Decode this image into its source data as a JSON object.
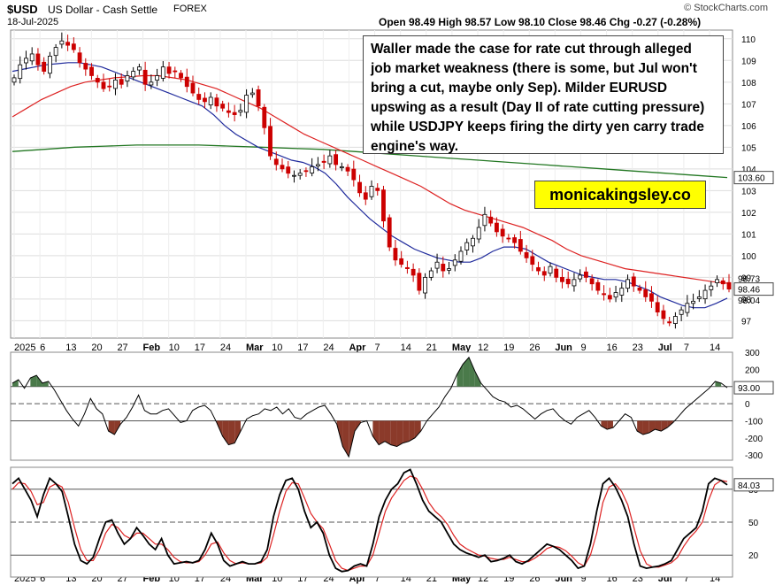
{
  "header": {
    "symbol": "$USD",
    "name": "US Dollar - Cash Settle",
    "exchange": "FOREX",
    "date": "18-Jul-2025",
    "ohlc": "Open 98.49  High 98.57  Low 98.10  Close 98.46  Chg -0.27 (-0.28%)",
    "credit": "© StockCharts.com"
  },
  "annotation": "Waller made the case for rate cut through alleged job market weakness (there is some, but Jul won't bring a cut, maybe only Sep). Milder EURUSD upswing as a result (Day II of rate cutting pressure) while USDJPY keeps firing the dirty yen carry trade engine's way.",
  "brand": "monicakingsley.co",
  "colors": {
    "up": "#ffffff",
    "down": "#cc0000",
    "ma_short": "#1f2a9c",
    "ma_mid": "#dd2222",
    "ma_long": "#227722",
    "stoch_k": "#000000",
    "stoch_d": "#dd2222",
    "cci_pos": "#4a7a4a",
    "cci_neg": "#8b3a2a"
  },
  "chart_data": [
    {
      "type": "candlestick",
      "x_labels": [
        "2025",
        "6",
        "13",
        "20",
        "27",
        "Feb",
        "10",
        "17",
        "24",
        "Mar",
        "10",
        "17",
        "24",
        "Apr",
        "7",
        "14",
        "21",
        "May",
        "12",
        "19",
        "26",
        "Jun",
        "9",
        "16",
        "23",
        "Jul",
        "7",
        "14"
      ],
      "y_ticks": [
        97,
        98,
        99,
        100,
        101,
        102,
        103,
        104,
        105,
        106,
        107,
        108,
        109,
        110
      ],
      "ylim": [
        96.2,
        110.4
      ],
      "last_values": {
        "close": "98.46",
        "ma_mid": "98.73",
        "ma_short": "98.04",
        "ma_long": "103.60"
      },
      "closes": [
        108.2,
        108.8,
        109.1,
        109.3,
        108.8,
        108.5,
        109.2,
        109.6,
        109.9,
        109.7,
        109.5,
        108.9,
        108.6,
        108.3,
        108.0,
        107.7,
        107.8,
        108.1,
        107.9,
        108.3,
        108.5,
        108.7,
        107.9,
        108.0,
        108.3,
        108.7,
        108.4,
        108.5,
        108.2,
        107.8,
        107.5,
        107.2,
        107.1,
        107.3,
        106.9,
        106.8,
        106.6,
        106.5,
        106.7,
        107.4,
        107.5,
        106.9,
        105.9,
        104.6,
        104.2,
        104.0,
        103.8,
        103.7,
        103.8,
        103.9,
        104.1,
        104.2,
        104.3,
        104.6,
        104.2,
        104.1,
        103.9,
        103.5,
        102.9,
        102.6,
        103.2,
        103.0,
        101.6,
        100.4,
        99.8,
        99.6,
        99.4,
        99.1,
        98.4,
        99.0,
        99.3,
        99.7,
        99.3,
        99.4,
        99.8,
        100.2,
        100.6,
        100.8,
        101.3,
        101.9,
        101.5,
        101.1,
        100.9,
        100.8,
        100.6,
        100.2,
        99.9,
        99.6,
        99.3,
        99.1,
        99.5,
        99.0,
        98.8,
        98.7,
        98.9,
        99.1,
        99.0,
        98.7,
        98.4,
        98.2,
        98.0,
        98.3,
        98.5,
        98.9,
        98.6,
        98.4,
        98.1,
        97.9,
        97.4,
        97.1,
        96.9,
        97.2,
        97.5,
        97.8,
        97.9,
        98.1,
        98.4,
        98.6,
        98.9,
        98.7,
        98.46
      ],
      "ma_short": [
        108.5,
        108.6,
        108.7,
        108.8,
        108.85,
        108.9,
        108.9,
        108.8,
        108.7,
        108.5,
        108.3,
        108.1,
        107.9,
        107.7,
        107.5,
        107.3,
        107.1,
        106.9,
        106.5,
        106.0,
        105.6,
        105.3,
        105.0,
        104.8,
        104.6,
        104.4,
        104.3,
        104.1,
        103.8,
        103.3,
        102.7,
        102.2,
        101.7,
        101.3,
        100.9,
        100.6,
        100.3,
        100.1,
        99.9,
        99.8,
        99.7,
        99.7,
        99.9,
        100.2,
        100.4,
        100.4,
        100.3,
        100.0,
        99.7,
        99.5,
        99.3,
        99.1,
        99.0,
        98.9,
        98.9,
        98.8,
        98.6,
        98.4,
        98.1,
        97.9,
        97.7,
        97.6,
        97.6,
        97.8,
        98.04
      ],
      "ma_mid": [
        106.4,
        106.8,
        107.2,
        107.5,
        107.8,
        108.0,
        108.1,
        108.2,
        108.25,
        108.3,
        108.3,
        108.2,
        108.1,
        107.9,
        107.7,
        107.4,
        107.1,
        106.8,
        106.4,
        106.0,
        105.6,
        105.3,
        105.0,
        104.7,
        104.4,
        104.1,
        103.8,
        103.5,
        103.2,
        102.8,
        102.4,
        102.1,
        101.9,
        101.7,
        101.5,
        101.3,
        101.0,
        100.7,
        100.3,
        100.0,
        99.8,
        99.6,
        99.4,
        99.3,
        99.2,
        99.1,
        99.0,
        98.9,
        98.8,
        98.73
      ],
      "ma_long": [
        104.8,
        104.9,
        105.0,
        105.05,
        105.1,
        105.1,
        105.1,
        105.05,
        105.0,
        104.95,
        104.9,
        104.8,
        104.7,
        104.6,
        104.5,
        104.4,
        104.3,
        104.2,
        104.1,
        104.0,
        103.9,
        103.8,
        103.7,
        103.6
      ]
    },
    {
      "type": "line",
      "name": "CCI",
      "y_ticks": [
        300,
        200,
        100,
        0,
        -100,
        -200,
        -300
      ],
      "ylim": [
        -330,
        300
      ],
      "last_value": "93.00",
      "values": [
        120,
        140,
        90,
        150,
        165,
        120,
        130,
        80,
        20,
        -40,
        -90,
        -130,
        -60,
        30,
        -30,
        -60,
        -160,
        -180,
        -120,
        -80,
        -20,
        50,
        -40,
        -60,
        -60,
        -40,
        -30,
        -70,
        -110,
        -100,
        -40,
        -20,
        -10,
        -40,
        -110,
        -190,
        -240,
        -230,
        -160,
        -90,
        -70,
        -60,
        -30,
        -40,
        -20,
        -60,
        -30,
        -80,
        -90,
        -60,
        -40,
        -20,
        -10,
        -60,
        -120,
        -250,
        -310,
        -160,
        -110,
        -100,
        -190,
        -240,
        -220,
        -240,
        -250,
        -230,
        -220,
        -200,
        -160,
        -100,
        -60,
        -20,
        40,
        90,
        170,
        230,
        270,
        190,
        120,
        80,
        40,
        20,
        10,
        -20,
        -10,
        -30,
        -60,
        -90,
        -60,
        -40,
        -30,
        -70,
        -100,
        -120,
        -80,
        -60,
        -40,
        -80,
        -130,
        -150,
        -140,
        -100,
        -60,
        -80,
        -160,
        -180,
        -170,
        -150,
        -160,
        -140,
        -110,
        -70,
        -30,
        0,
        30,
        60,
        90,
        130,
        120,
        93
      ]
    },
    {
      "type": "line",
      "name": "Stochastic",
      "y_ticks": [
        80,
        50,
        20
      ],
      "ylim": [
        0,
        100
      ],
      "last_values": {
        "k": "84.03",
        "d": "87.02"
      },
      "k": [
        85,
        90,
        80,
        70,
        55,
        75,
        90,
        85,
        78,
        55,
        30,
        15,
        12,
        18,
        35,
        50,
        52,
        40,
        30,
        35,
        45,
        38,
        30,
        25,
        35,
        20,
        12,
        13,
        14,
        13,
        15,
        25,
        40,
        30,
        15,
        10,
        12,
        14,
        12,
        12,
        14,
        25,
        55,
        75,
        88,
        90,
        80,
        60,
        45,
        50,
        40,
        20,
        8,
        5,
        6,
        10,
        12,
        10,
        30,
        55,
        70,
        80,
        85,
        95,
        98,
        85,
        70,
        60,
        55,
        50,
        40,
        30,
        25,
        22,
        20,
        18,
        20,
        14,
        15,
        17,
        20,
        14,
        12,
        15,
        20,
        25,
        30,
        28,
        25,
        20,
        15,
        8,
        10,
        30,
        60,
        85,
        90,
        82,
        70,
        55,
        30,
        10,
        8,
        9,
        10,
        12,
        15,
        25,
        35,
        40,
        45,
        60,
        85,
        90,
        88,
        84.03
      ],
      "d": [
        80,
        86,
        85,
        78,
        66,
        68,
        82,
        85,
        82,
        68,
        45,
        25,
        15,
        15,
        25,
        40,
        48,
        45,
        38,
        35,
        40,
        40,
        35,
        30,
        30,
        25,
        18,
        14,
        13,
        13,
        14,
        20,
        30,
        32,
        22,
        15,
        12,
        13,
        12,
        12,
        13,
        18,
        38,
        60,
        78,
        86,
        85,
        72,
        58,
        50,
        44,
        30,
        15,
        8,
        6,
        8,
        10,
        10,
        20,
        40,
        60,
        72,
        80,
        88,
        92,
        90,
        80,
        68,
        60,
        55,
        48,
        38,
        30,
        26,
        23,
        20,
        19,
        17,
        16,
        16,
        18,
        16,
        14,
        14,
        17,
        21,
        26,
        28,
        27,
        24,
        19,
        13,
        10,
        20,
        40,
        68,
        82,
        85,
        78,
        66,
        45,
        24,
        12,
        9,
        9,
        11,
        13,
        18,
        28,
        36,
        42,
        50,
        70,
        84,
        88,
        87.02
      ]
    }
  ]
}
